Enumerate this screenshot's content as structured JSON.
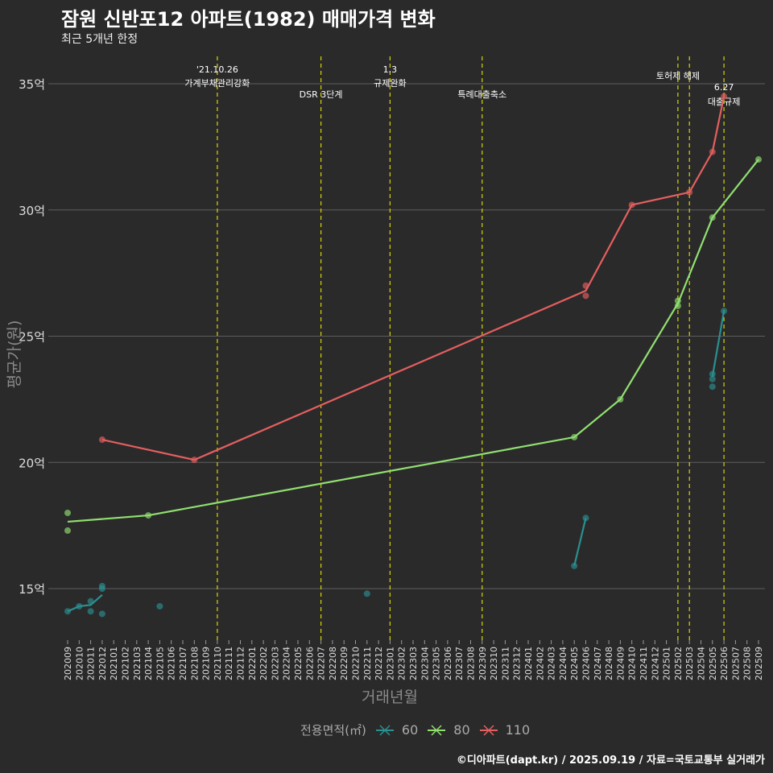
{
  "chart_data": {
    "type": "line",
    "title": "잠원 신반포12 아파트(1982) 매매가격 변화",
    "subtitle": "최근 5개년 한정",
    "xlabel": "거래년월",
    "ylabel": "평균가(원)",
    "ylim": [
      13,
      36
    ],
    "yticks": [
      15,
      20,
      25,
      30,
      35
    ],
    "ytick_labels": [
      "15억",
      "20억",
      "25억",
      "30억",
      "35억"
    ],
    "x_categories": [
      "202009",
      "202010",
      "202011",
      "202012",
      "202101",
      "202102",
      "202103",
      "202104",
      "202105",
      "202106",
      "202107",
      "202108",
      "202109",
      "202110",
      "202111",
      "202112",
      "202201",
      "202202",
      "202203",
      "202204",
      "202205",
      "202206",
      "202207",
      "202208",
      "202209",
      "202210",
      "202211",
      "202212",
      "202301",
      "202302",
      "202303",
      "202304",
      "202305",
      "202306",
      "202307",
      "202308",
      "202309",
      "202310",
      "202311",
      "202312",
      "202401",
      "202402",
      "202403",
      "202404",
      "202405",
      "202406",
      "202407",
      "202408",
      "202409",
      "202410",
      "202411",
      "202412",
      "202501",
      "202502",
      "202503",
      "202504",
      "202505",
      "202506",
      "202507",
      "202508",
      "202509"
    ],
    "grid": true,
    "legend": {
      "title": "전용면적(㎡)",
      "position": "bottom"
    },
    "series": [
      {
        "name": "60",
        "color": "#2a9090",
        "points": [
          [
            "202009",
            14.1
          ],
          [
            "202010",
            14.3
          ],
          [
            "202011",
            14.5
          ],
          [
            "202011",
            14.1
          ],
          [
            "202012",
            15.1
          ],
          [
            "202012",
            15.0
          ],
          [
            "202012",
            14.0
          ],
          [
            "202105",
            14.3
          ],
          [
            "202211",
            14.8
          ],
          [
            "202405",
            15.9
          ],
          [
            "202406",
            17.8
          ],
          [
            "202505",
            23.5
          ],
          [
            "202505",
            23.3
          ],
          [
            "202505",
            23.0
          ],
          [
            "202506",
            26.0
          ]
        ],
        "line_segments": [
          [
            [
              "202009",
              14.1
            ],
            [
              "202010",
              14.3
            ],
            [
              "202011",
              14.35
            ],
            [
              "202012",
              14.75
            ]
          ],
          [
            [
              "202405",
              15.9
            ],
            [
              "202406",
              17.8
            ]
          ],
          [
            [
              "202505",
              23.4
            ],
            [
              "202506",
              26.0
            ]
          ]
        ]
      },
      {
        "name": "80",
        "color": "#90e070",
        "points": [
          [
            "202009",
            18.0
          ],
          [
            "202009",
            17.3
          ],
          [
            "202104",
            17.9
          ],
          [
            "202405",
            21.0
          ],
          [
            "202409",
            22.5
          ],
          [
            "202502",
            26.2
          ],
          [
            "202502",
            26.4
          ],
          [
            "202505",
            29.7
          ],
          [
            "202509",
            32.0
          ]
        ],
        "line_segments": [
          [
            [
              "202009",
              17.65
            ],
            [
              "202104",
              17.9
            ],
            [
              "202405",
              21.0
            ],
            [
              "202409",
              22.5
            ],
            [
              "202502",
              26.3
            ],
            [
              "202505",
              29.7
            ],
            [
              "202509",
              32.0
            ]
          ]
        ]
      },
      {
        "name": "110",
        "color": "#e55f5f",
        "points": [
          [
            "202012",
            20.9
          ],
          [
            "202108",
            20.1
          ],
          [
            "202406",
            27.0
          ],
          [
            "202406",
            26.6
          ],
          [
            "202410",
            30.2
          ],
          [
            "202503",
            30.7
          ],
          [
            "202505",
            32.3
          ],
          [
            "202506",
            34.5
          ]
        ],
        "line_segments": [
          [
            [
              "202012",
              20.9
            ],
            [
              "202108",
              20.1
            ],
            [
              "202406",
              26.8
            ],
            [
              "202410",
              30.2
            ],
            [
              "202503",
              30.7
            ],
            [
              "202505",
              32.3
            ],
            [
              "202506",
              34.5
            ]
          ]
        ]
      }
    ],
    "events": [
      {
        "month": "202110",
        "lines": [
          "'21.10.26",
          "가계부채관리강화"
        ]
      },
      {
        "month": "202207",
        "lines": [
          "DSR 3단계"
        ]
      },
      {
        "month": "202301",
        "lines": [
          "1.3",
          "규제완화"
        ]
      },
      {
        "month": "202309",
        "lines": [
          "특례대출축소"
        ]
      },
      {
        "month": "202502",
        "lines": [
          "토허제 해제"
        ]
      },
      {
        "month": "202503",
        "lines": []
      },
      {
        "month": "202506",
        "lines": [
          "6.27",
          "대출규제"
        ]
      }
    ],
    "event_line_color": "#d4d400",
    "footer": "©디아파트(dapt.kr) / 2025.09.19 / 자료=국토교통부 실거래가"
  }
}
